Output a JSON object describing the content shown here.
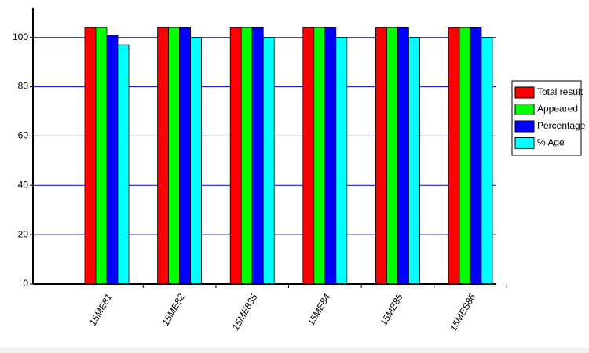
{
  "chart_data": {
    "type": "bar",
    "categories": [
      "15ME81",
      "15ME82",
      "15ME835",
      "15ME84",
      "15ME85",
      "15MES86"
    ],
    "series": [
      {
        "name": "Total result",
        "color": "#ff0000",
        "values": [
          104,
          104,
          104,
          104,
          104,
          104
        ]
      },
      {
        "name": "Appeared",
        "color": "#00ff00",
        "values": [
          104,
          104,
          104,
          104,
          104,
          104
        ]
      },
      {
        "name": "Percentage",
        "color": "#0000ff",
        "values": [
          101,
          104,
          104,
          104,
          104,
          104
        ]
      },
      {
        "name": "% Age",
        "color": "#00ffff",
        "values": [
          97,
          100,
          100,
          100,
          100,
          100
        ]
      }
    ],
    "ylim": [
      0,
      112
    ],
    "yticks": [
      0,
      20,
      40,
      60,
      80,
      100
    ],
    "grid": true,
    "legend": "right"
  }
}
